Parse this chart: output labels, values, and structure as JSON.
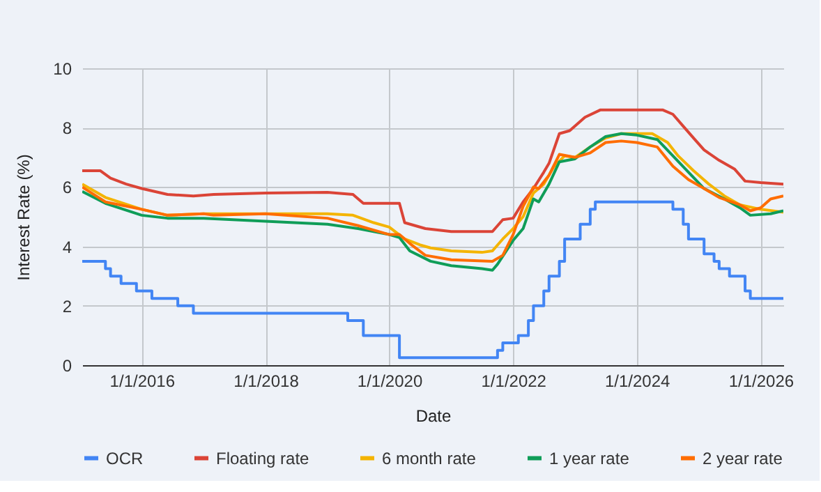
{
  "chart_data": {
    "type": "line",
    "xlabel": "Date",
    "ylabel": "Interest Rate (%)",
    "xlim": [
      "2015-01-15",
      "2026-05-15"
    ],
    "xticks": [
      {
        "value": "2016-01-01",
        "label": "1/1/2016"
      },
      {
        "value": "2018-01-01",
        "label": "1/1/2018"
      },
      {
        "value": "2020-01-01",
        "label": "1/1/2020"
      },
      {
        "value": "2022-01-01",
        "label": "1/1/2022"
      },
      {
        "value": "2024-01-01",
        "label": "1/1/2024"
      },
      {
        "value": "2026-01-01",
        "label": "1/1/2026"
      }
    ],
    "ylim": [
      0,
      10
    ],
    "yticks": [
      0,
      2,
      4,
      6,
      8,
      10
    ],
    "grid": true,
    "legend": "bottom",
    "series": [
      {
        "name": "OCR",
        "type": "step",
        "color": "#4285f4",
        "x": [
          "2015-01-15",
          "2015-06",
          "2015-07",
          "2015-09",
          "2015-12",
          "2016-03",
          "2016-08",
          "2016-11",
          "2019-05",
          "2019-08",
          "2020-03",
          "2021-10",
          "2021-11",
          "2022-02",
          "2022-04",
          "2022-05",
          "2022-07",
          "2022-08",
          "2022-10",
          "2022-11",
          "2023-02",
          "2023-04",
          "2023-05",
          "2024-08",
          "2024-10",
          "2024-11",
          "2025-02",
          "2025-04",
          "2025-05",
          "2025-07",
          "2025-10",
          "2025-11",
          "2026-05-15"
        ],
        "values": [
          3.5,
          3.25,
          3.0,
          2.75,
          2.5,
          2.25,
          2.0,
          1.75,
          1.5,
          1.0,
          0.25,
          0.5,
          0.75,
          1.0,
          1.5,
          2.0,
          2.5,
          3.0,
          3.5,
          4.25,
          4.75,
          5.25,
          5.5,
          5.25,
          4.75,
          4.25,
          3.75,
          3.5,
          3.25,
          3.0,
          2.5,
          2.25,
          2.25
        ]
      },
      {
        "name": "Floating rate",
        "color": "#db4437",
        "x": [
          "2015-01-15",
          "2015-05",
          "2015-07",
          "2015-10",
          "2016-01",
          "2016-06",
          "2016-11",
          "2017-03",
          "2018-01",
          "2019-01",
          "2019-06",
          "2019-08",
          "2020-03",
          "2020-04",
          "2020-08",
          "2021-01",
          "2021-09",
          "2021-11",
          "2022-01",
          "2022-03",
          "2022-05",
          "2022-07",
          "2022-08",
          "2022-10",
          "2022-12",
          "2023-03",
          "2023-06",
          "2024-06",
          "2024-08",
          "2024-10",
          "2024-12",
          "2025-02",
          "2025-05",
          "2025-08",
          "2025-10",
          "2026-01",
          "2026-05-15"
        ],
        "values": [
          6.55,
          6.55,
          6.3,
          6.1,
          5.95,
          5.75,
          5.7,
          5.75,
          5.8,
          5.82,
          5.75,
          5.45,
          5.45,
          4.8,
          4.6,
          4.5,
          4.5,
          4.9,
          4.95,
          5.5,
          5.95,
          6.5,
          6.8,
          7.8,
          7.9,
          8.35,
          8.6,
          8.6,
          8.45,
          8.05,
          7.65,
          7.25,
          6.9,
          6.6,
          6.2,
          6.15,
          6.1
        ]
      },
      {
        "name": "6 month rate",
        "color": "#f4b400",
        "x": [
          "2015-01-15",
          "2015-06",
          "2016-01",
          "2016-06",
          "2017-01",
          "2018-01",
          "2019-01",
          "2019-06",
          "2019-10",
          "2020-01",
          "2020-04",
          "2020-07",
          "2020-09",
          "2021-01",
          "2021-07",
          "2021-09",
          "2021-11",
          "2022-01",
          "2022-03",
          "2022-05",
          "2022-07",
          "2022-09",
          "2022-11",
          "2023-01",
          "2023-04",
          "2023-07",
          "2023-10",
          "2024-04",
          "2024-07",
          "2024-09",
          "2024-12",
          "2025-03",
          "2025-06",
          "2025-09",
          "2026-01",
          "2026-05-15"
        ],
        "values": [
          6.1,
          5.65,
          5.25,
          5.05,
          5.1,
          5.1,
          5.1,
          5.05,
          4.8,
          4.65,
          4.25,
          4.05,
          3.95,
          3.85,
          3.8,
          3.85,
          4.25,
          4.6,
          5.0,
          5.8,
          6.1,
          6.7,
          7.05,
          7.0,
          7.35,
          7.65,
          7.8,
          7.8,
          7.5,
          7.05,
          6.55,
          6.1,
          5.7,
          5.4,
          5.25,
          5.15
        ]
      },
      {
        "name": "1 year rate",
        "color": "#0f9d58",
        "x": [
          "2015-01-15",
          "2015-06",
          "2016-01",
          "2016-06",
          "2017-01",
          "2018-01",
          "2019-01",
          "2019-07",
          "2020-01",
          "2020-03",
          "2020-05",
          "2020-09",
          "2021-01",
          "2021-07",
          "2021-09",
          "2021-10",
          "2022-01",
          "2022-03",
          "2022-05",
          "2022-06",
          "2022-08",
          "2022-10",
          "2023-01",
          "2023-04",
          "2023-07",
          "2023-10",
          "2024-01",
          "2024-05",
          "2024-08",
          "2024-11",
          "2025-02",
          "2025-06",
          "2025-09",
          "2025-11",
          "2026-03",
          "2026-05-15"
        ],
        "values": [
          5.85,
          5.45,
          5.05,
          4.95,
          4.95,
          4.85,
          4.75,
          4.6,
          4.4,
          4.3,
          3.85,
          3.5,
          3.35,
          3.25,
          3.2,
          3.4,
          4.2,
          4.6,
          5.6,
          5.5,
          6.1,
          6.85,
          6.95,
          7.35,
          7.7,
          7.8,
          7.75,
          7.6,
          7.05,
          6.5,
          5.95,
          5.6,
          5.3,
          5.05,
          5.1,
          5.2
        ]
      },
      {
        "name": "2 year rate",
        "color": "#ff6d01",
        "x": [
          "2015-01-15",
          "2015-06",
          "2016-01",
          "2016-06",
          "2017-01",
          "2017-03",
          "2018-01",
          "2019-01",
          "2019-07",
          "2020-01",
          "2020-03",
          "2020-05",
          "2020-08",
          "2021-01",
          "2021-09",
          "2021-11",
          "2022-01",
          "2022-03",
          "2022-05",
          "2022-06",
          "2022-08",
          "2022-10",
          "2023-01",
          "2023-04",
          "2023-07",
          "2023-10",
          "2024-01",
          "2024-05",
          "2024-08",
          "2024-11",
          "2025-02",
          "2025-05",
          "2025-09",
          "2025-11",
          "2026-01",
          "2026-03",
          "2026-05-15"
        ],
        "values": [
          6.0,
          5.5,
          5.25,
          5.05,
          5.1,
          5.05,
          5.1,
          4.95,
          4.7,
          4.4,
          4.4,
          4.1,
          3.7,
          3.55,
          3.5,
          3.7,
          4.4,
          5.35,
          6.0,
          5.95,
          6.4,
          7.1,
          7.0,
          7.15,
          7.5,
          7.55,
          7.5,
          7.35,
          6.7,
          6.25,
          5.95,
          5.65,
          5.4,
          5.2,
          5.3,
          5.6,
          5.7
        ]
      }
    ]
  }
}
